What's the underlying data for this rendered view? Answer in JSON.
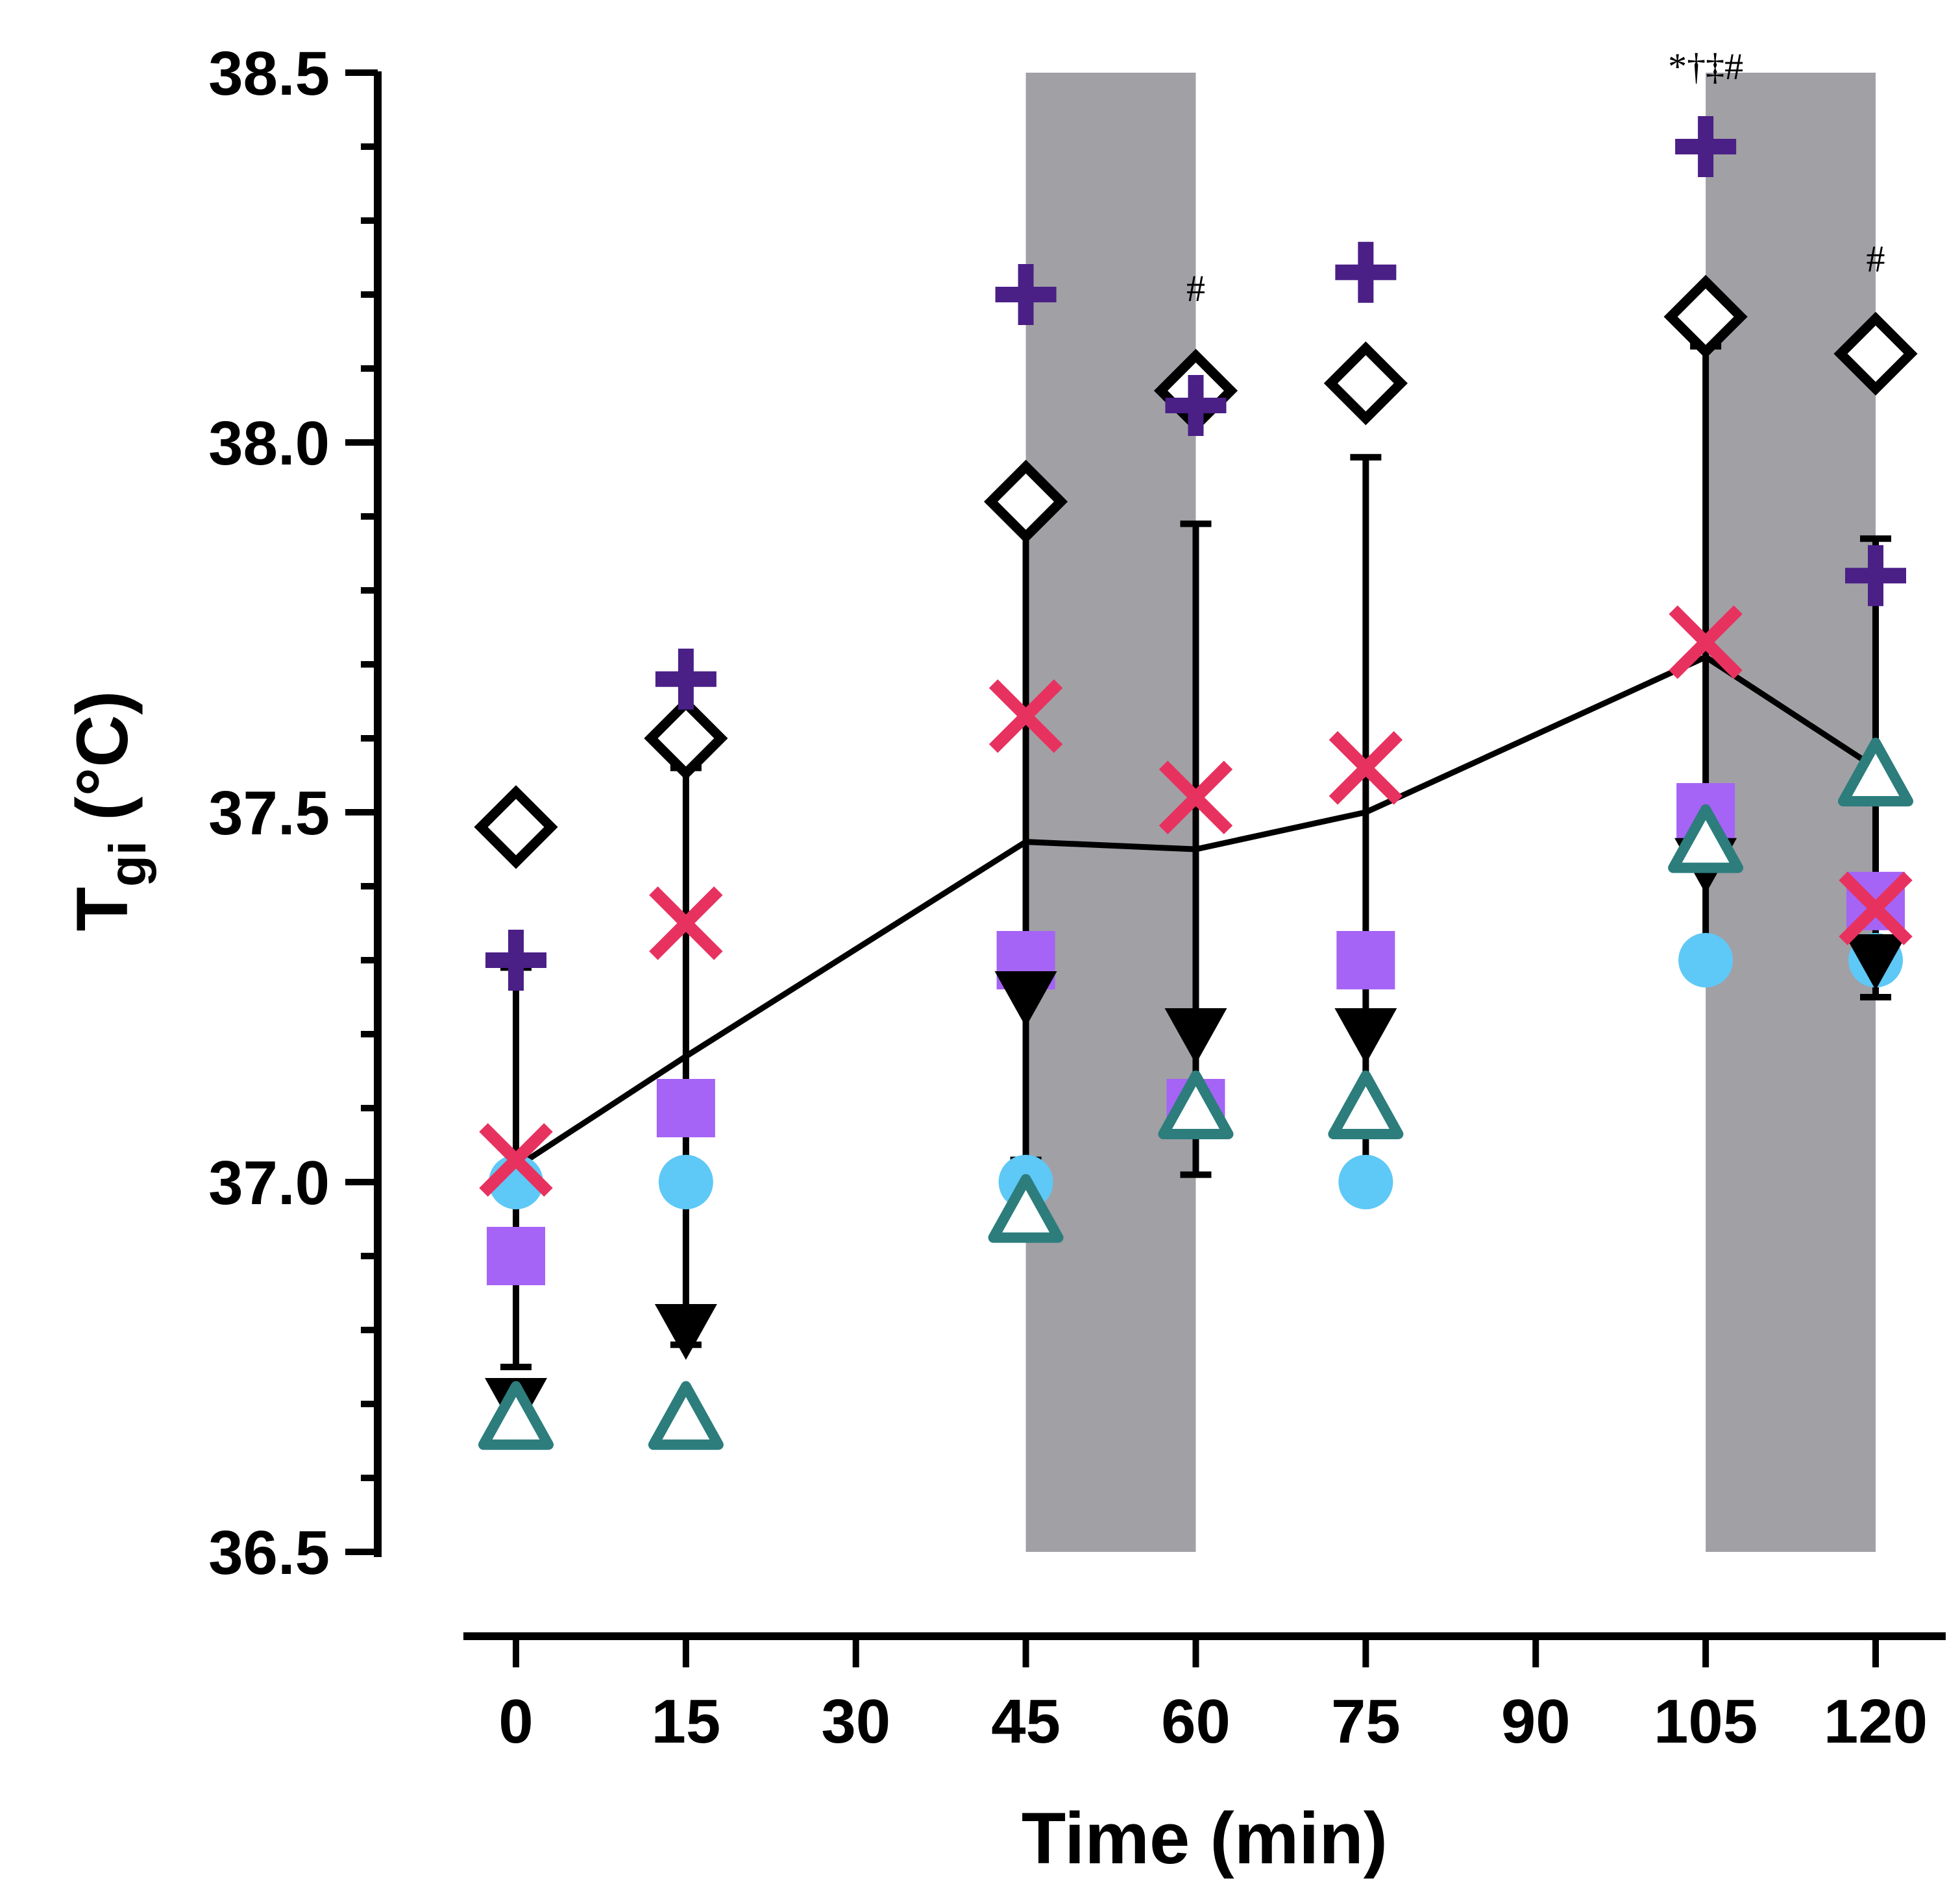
{
  "chart_data": {
    "type": "scatter",
    "xlabel": "Time (min)",
    "ylabel": {
      "main": "T",
      "sub": "gi",
      "rest": " (°C)"
    },
    "xlim": [
      0,
      120
    ],
    "ylim": [
      36.5,
      38.5
    ],
    "x_ticks": [
      0,
      15,
      30,
      45,
      60,
      75,
      90,
      105,
      120
    ],
    "y_ticks": [
      36.5,
      37.0,
      37.5,
      38.0,
      38.5
    ],
    "y_tick_labels": [
      "36.5",
      "37.0",
      "37.5",
      "38.0",
      "38.5"
    ],
    "shaded_intervals": [
      [
        45,
        60
      ],
      [
        105,
        120
      ]
    ],
    "shade_color": "#a1a0a5",
    "grid": false,
    "legend": "none",
    "series": [
      {
        "marker": "plus",
        "color": "#4a1f86",
        "x": [
          0,
          15,
          45,
          60,
          75,
          105,
          120
        ],
        "y": [
          37.3,
          37.68,
          38.2,
          38.05,
          38.23,
          38.4,
          37.82
        ]
      },
      {
        "marker": "diamond-open",
        "color": "#000000",
        "x": [
          0,
          15,
          45,
          60,
          75,
          105,
          120
        ],
        "y": [
          37.48,
          37.6,
          37.92,
          38.07,
          38.08,
          38.17,
          38.12
        ]
      },
      {
        "marker": "x",
        "color": "#e7325f",
        "x": [
          0,
          15,
          45,
          60,
          75,
          105,
          120
        ],
        "y": [
          37.03,
          37.35,
          37.63,
          37.52,
          37.56,
          37.73,
          37.37
        ]
      },
      {
        "marker": "square",
        "color": "#a564f5",
        "x": [
          0,
          15,
          45,
          60,
          75,
          105,
          120
        ],
        "y": [
          36.9,
          37.1,
          37.3,
          37.1,
          37.3,
          37.5,
          37.38
        ]
      },
      {
        "marker": "circle",
        "color": "#5ec8f6",
        "x": [
          0,
          15,
          45,
          75,
          105,
          120
        ],
        "y": [
          37.0,
          37.0,
          37.0,
          37.0,
          37.3,
          37.3
        ]
      },
      {
        "marker": "triangle-down",
        "color": "#000000",
        "x": [
          0,
          15,
          45,
          60,
          75,
          105,
          120
        ],
        "y": [
          36.7,
          36.8,
          37.25,
          37.2,
          37.2,
          37.43,
          37.3
        ]
      },
      {
        "marker": "triangle-open",
        "color": "#2d7d7d",
        "x": [
          0,
          15,
          45,
          60,
          75,
          105,
          120
        ],
        "y": [
          36.68,
          36.68,
          36.96,
          37.1,
          37.1,
          37.46,
          37.55
        ]
      }
    ],
    "mean": {
      "x": [
        0,
        15,
        45,
        60,
        75,
        105,
        120
      ],
      "y": [
        37.02,
        37.17,
        37.46,
        37.45,
        37.5,
        37.71,
        37.56
      ],
      "sd": [
        0.27,
        0.39,
        0.43,
        0.44,
        0.48,
        0.42,
        0.31
      ]
    },
    "annotations": [
      {
        "x": 60,
        "y": 38.2,
        "text": "#"
      },
      {
        "x": 75,
        "y": 37.8,
        "text": ""
      },
      {
        "x": 105,
        "y": 38.5,
        "text": "*†‡#"
      },
      {
        "x": 120,
        "y": 38.24,
        "text": "#"
      }
    ]
  }
}
